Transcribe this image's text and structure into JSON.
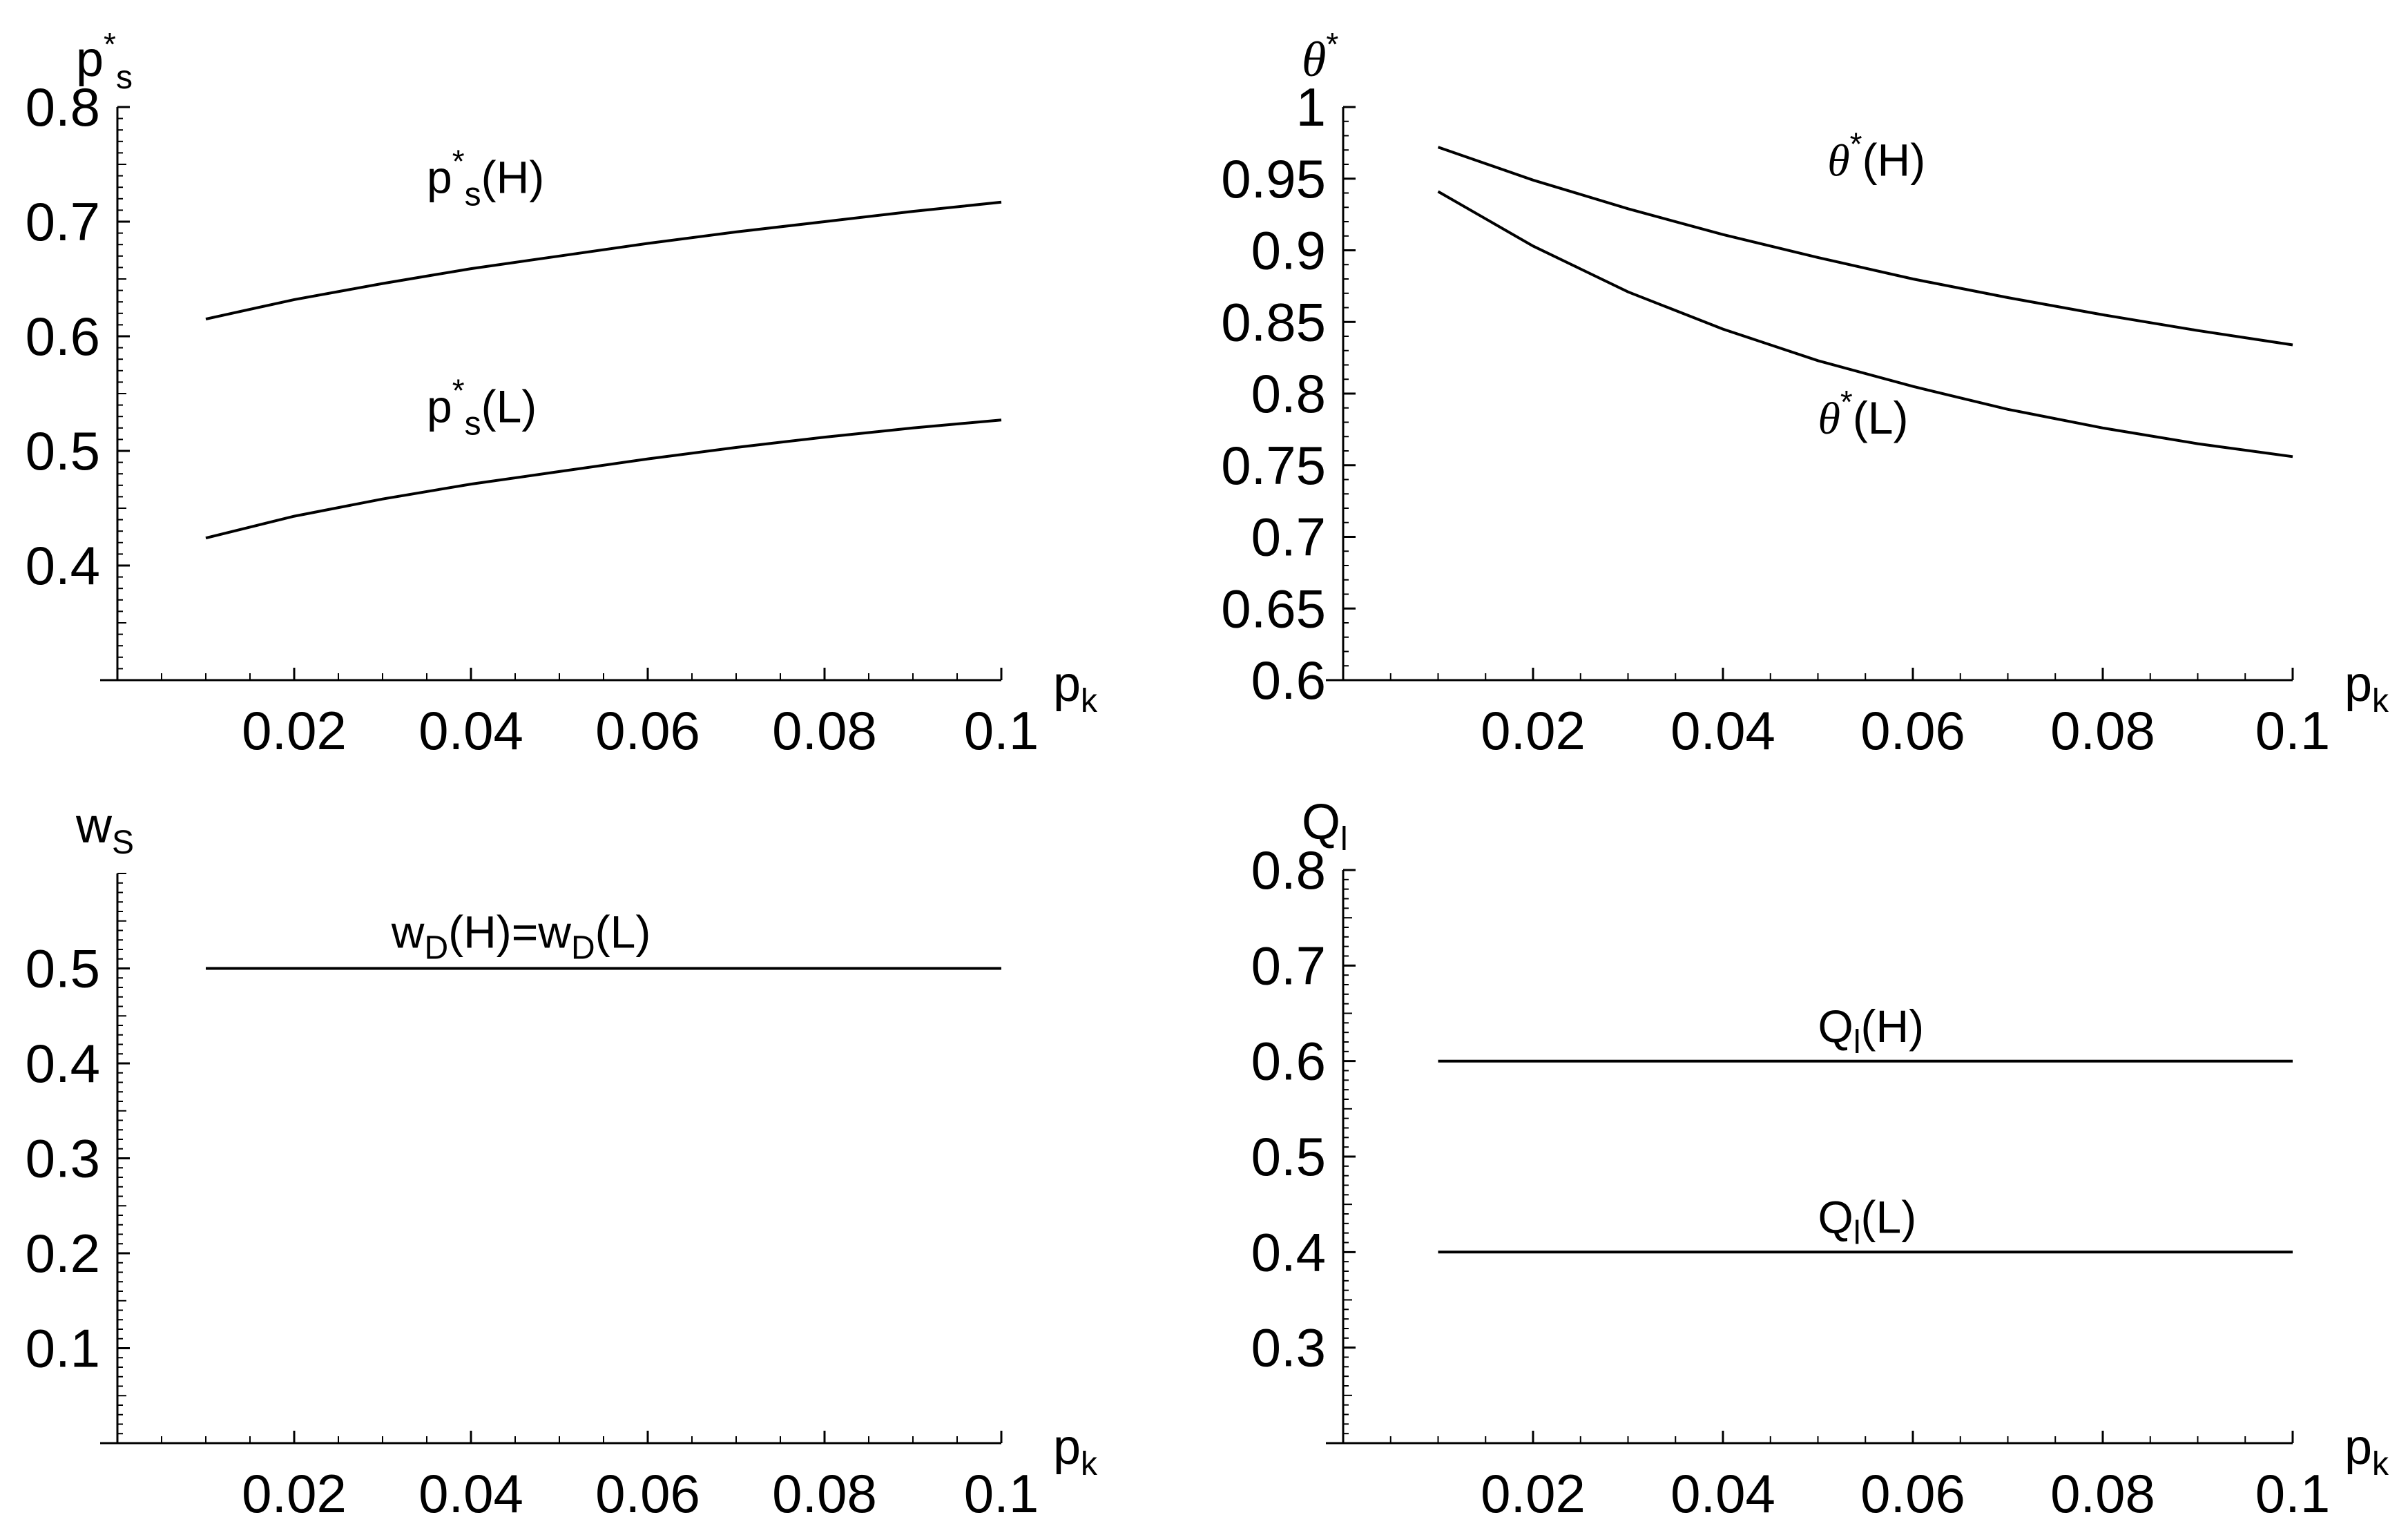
{
  "chart_data": [
    {
      "id": "ps",
      "type": "line",
      "ylabel": {
        "base": "p",
        "sup": "*",
        "sub": "s"
      },
      "xlabel": {
        "base": "p",
        "sub": "k"
      },
      "xlim": [
        0,
        0.1
      ],
      "ylim": [
        0.3,
        0.8
      ],
      "xticks": [
        "0.02",
        "0.04",
        "0.06",
        "0.08",
        "0.1"
      ],
      "xtick_values": [
        0.02,
        0.04,
        0.06,
        0.08,
        0.1
      ],
      "yticks": [
        "0.4",
        "0.5",
        "0.6",
        "0.7",
        "0.8"
      ],
      "ytick_values": [
        0.4,
        0.5,
        0.6,
        0.7,
        0.8
      ],
      "x": [
        0.01,
        0.02,
        0.03,
        0.04,
        0.05,
        0.06,
        0.07,
        0.08,
        0.09,
        0.1
      ],
      "series": [
        {
          "label": {
            "base": "p",
            "sup": "*",
            "sub": "s",
            "tail": "(H)"
          },
          "label_anchor": [
            0.035,
            0.725
          ],
          "values": [
            0.615,
            0.632,
            0.646,
            0.659,
            0.67,
            0.681,
            0.691,
            0.7,
            0.709,
            0.717
          ]
        },
        {
          "label": {
            "base": "p",
            "sup": "*",
            "sub": "s",
            "tail": "(L)"
          },
          "label_anchor": [
            0.035,
            0.525
          ],
          "values": [
            0.424,
            0.443,
            0.458,
            0.471,
            0.482,
            0.493,
            0.503,
            0.512,
            0.52,
            0.527
          ]
        }
      ]
    },
    {
      "id": "theta",
      "type": "line",
      "ylabel": {
        "base": "θ",
        "sup": "*",
        "greek": true
      },
      "xlabel": {
        "base": "p",
        "sub": "k"
      },
      "xlim": [
        0,
        0.1
      ],
      "ylim": [
        0.6,
        1.0
      ],
      "xticks": [
        "0.02",
        "0.04",
        "0.06",
        "0.08",
        "0.1"
      ],
      "xtick_values": [
        0.02,
        0.04,
        0.06,
        0.08,
        0.1
      ],
      "yticks": [
        "0.6",
        "0.65",
        "0.7",
        "0.75",
        "0.8",
        "0.85",
        "0.9",
        "0.95",
        "1"
      ],
      "ytick_values": [
        0.6,
        0.65,
        0.7,
        0.75,
        0.8,
        0.85,
        0.9,
        0.95,
        1.0
      ],
      "x": [
        0.01,
        0.02,
        0.03,
        0.04,
        0.05,
        0.06,
        0.07,
        0.08,
        0.09,
        0.1
      ],
      "series": [
        {
          "label": {
            "base": "θ",
            "sup": "*",
            "greek": true,
            "tail": "(H)"
          },
          "label_anchor": [
            0.051,
            0.952
          ],
          "values": [
            0.972,
            0.949,
            0.929,
            0.911,
            0.895,
            0.88,
            0.867,
            0.855,
            0.844,
            0.834
          ]
        },
        {
          "label": {
            "base": "θ",
            "sup": "*",
            "greek": true,
            "tail": "(L)"
          },
          "label_anchor": [
            0.05,
            0.772
          ],
          "values": [
            0.941,
            0.903,
            0.871,
            0.845,
            0.823,
            0.805,
            0.789,
            0.776,
            0.765,
            0.756
          ]
        }
      ]
    },
    {
      "id": "ws",
      "type": "line",
      "ylabel": {
        "base": "w",
        "sub": "S"
      },
      "xlabel": {
        "base": "p",
        "sub": "k"
      },
      "xlim": [
        0,
        0.1
      ],
      "ylim": [
        0.0,
        0.6
      ],
      "xticks": [
        "0.02",
        "0.04",
        "0.06",
        "0.08",
        "0.1"
      ],
      "xtick_values": [
        0.02,
        0.04,
        0.06,
        0.08,
        0.1
      ],
      "yticks": [
        "0.1",
        "0.2",
        "0.3",
        "0.4",
        "0.5"
      ],
      "ytick_values": [
        0.1,
        0.2,
        0.3,
        0.4,
        0.5
      ],
      "x": [
        0.01,
        0.1
      ],
      "series": [
        {
          "label": {
            "text": "w_D(H)=w_D(L)"
          },
          "label_anchor": [
            0.031,
            0.522
          ],
          "values": [
            0.5,
            0.5
          ]
        }
      ]
    },
    {
      "id": "ql",
      "type": "line",
      "ylabel": {
        "base": "Q",
        "sub": "l"
      },
      "xlabel": {
        "base": "p",
        "sub": "k"
      },
      "xlim": [
        0,
        0.1
      ],
      "ylim": [
        0.2,
        0.8
      ],
      "xticks": [
        "0.02",
        "0.04",
        "0.06",
        "0.08",
        "0.1"
      ],
      "xtick_values": [
        0.02,
        0.04,
        0.06,
        0.08,
        0.1
      ],
      "yticks": [
        "0.3",
        "0.4",
        "0.5",
        "0.6",
        "0.7",
        "0.8"
      ],
      "ytick_values": [
        0.3,
        0.4,
        0.5,
        0.6,
        0.7,
        0.8
      ],
      "x": [
        0.01,
        0.1
      ],
      "series": [
        {
          "label": {
            "base": "Q",
            "sub": "l",
            "tail": "(H)"
          },
          "label_anchor": [
            0.05,
            0.62
          ],
          "values": [
            0.6,
            0.6
          ]
        },
        {
          "label": {
            "base": "Q",
            "sub": "l",
            "tail": "(L)"
          },
          "label_anchor": [
            0.05,
            0.42
          ],
          "values": [
            0.4,
            0.4
          ]
        }
      ]
    }
  ]
}
